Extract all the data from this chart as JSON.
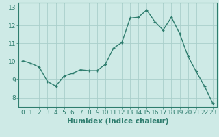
{
  "x": [
    0,
    1,
    2,
    3,
    4,
    5,
    6,
    7,
    8,
    9,
    10,
    11,
    12,
    13,
    14,
    15,
    16,
    17,
    18,
    19,
    20,
    21,
    22,
    23
  ],
  "y": [
    10.05,
    9.9,
    9.7,
    8.9,
    8.65,
    9.2,
    9.35,
    9.55,
    9.5,
    9.5,
    9.85,
    10.75,
    11.05,
    12.4,
    12.45,
    12.85,
    12.2,
    11.75,
    12.45,
    11.55,
    10.3,
    9.45,
    8.65,
    7.7
  ],
  "line_color": "#2e7d6e",
  "marker": "+",
  "marker_size": 3,
  "line_width": 1.0,
  "bg_color": "#ceeae6",
  "grid_color": "#aacfcb",
  "xlabel": "Humidex (Indice chaleur)",
  "xlabel_fontsize": 7.5,
  "tick_fontsize": 6.5,
  "xlim": [
    -0.5,
    23.5
  ],
  "ylim": [
    7.5,
    13.25
  ],
  "yticks": [
    8,
    9,
    10,
    11,
    12,
    13
  ],
  "xticks": [
    0,
    1,
    2,
    3,
    4,
    5,
    6,
    7,
    8,
    9,
    10,
    11,
    12,
    13,
    14,
    15,
    16,
    17,
    18,
    19,
    20,
    21,
    22,
    23
  ]
}
